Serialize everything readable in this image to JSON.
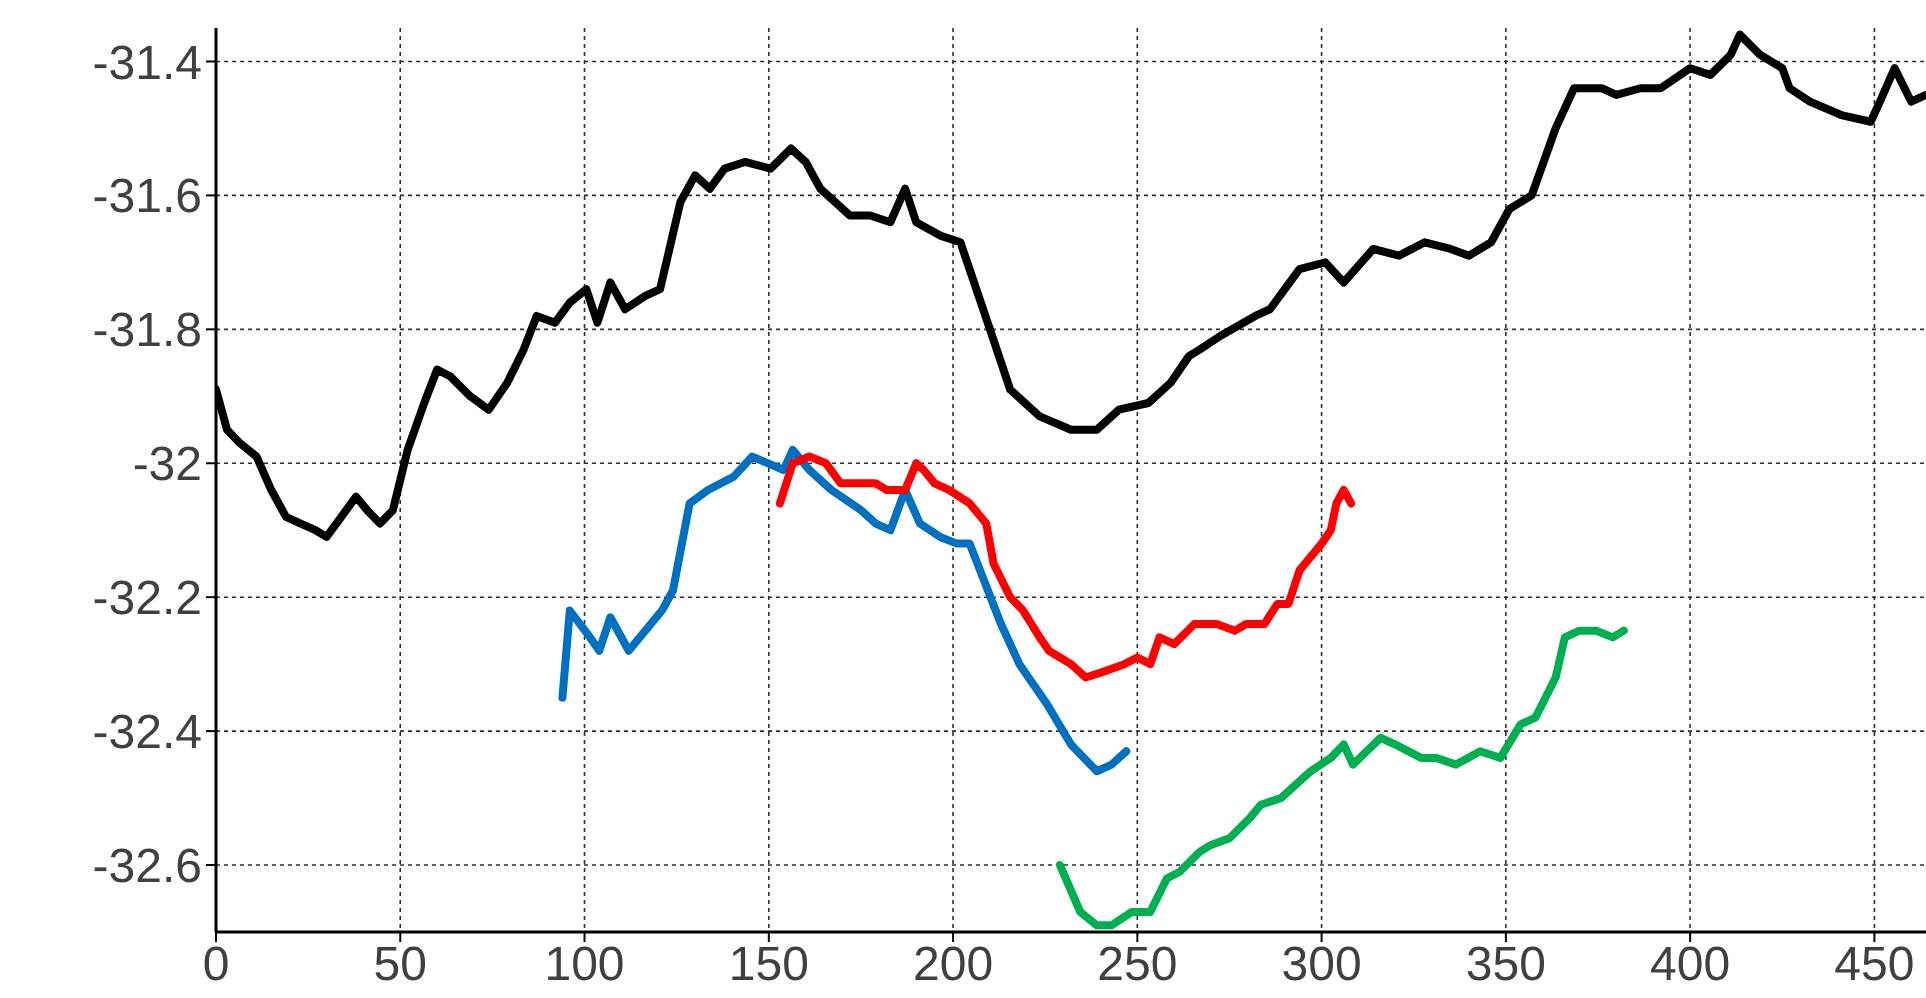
{
  "chart_data": {
    "type": "line",
    "xlim": [
      0,
      464
    ],
    "xticks": [
      0,
      50,
      100,
      150,
      200,
      250,
      300,
      350,
      400,
      450
    ],
    "ylim": [
      -32.7,
      -31.35
    ],
    "yticks": [
      -32.6,
      -32.4,
      -32.2,
      -32,
      -31.8,
      -31.6,
      -31.4
    ],
    "grid": true,
    "marker": "none",
    "line_style": "solid",
    "series": [
      {
        "color": "#000000",
        "x": [
          0,
          3,
          6.5,
          11,
          15,
          19,
          23,
          27,
          30,
          34,
          38,
          41,
          44.5,
          48,
          52,
          56.5,
          60,
          63.5,
          69,
          74,
          79,
          83.5,
          87,
          92,
          96,
          100.5,
          103.5,
          107,
          111,
          116.5,
          120.5,
          126,
          130,
          134,
          138,
          143.5,
          150.5,
          156,
          160,
          164,
          172,
          177.5,
          183,
          187,
          190,
          196.5,
          202,
          210,
          215.5,
          223.5,
          232,
          239,
          245,
          253,
          259,
          264,
          267,
          272.5,
          282,
          286,
          294,
          301,
          306,
          314,
          321,
          328,
          335,
          340,
          346,
          351,
          357,
          363.5,
          368.5,
          376,
          380,
          386.5,
          392,
          400,
          405.5,
          411,
          413.5,
          419,
          425,
          427,
          432.5,
          441,
          449,
          451.5,
          455.5,
          460,
          464
        ],
        "values": [
          -31.89,
          -31.95,
          -31.97,
          -31.99,
          -32.04,
          -32.08,
          -32.09,
          -32.1,
          -32.11,
          -32.08,
          -32.05,
          -32.07,
          -32.09,
          -32.07,
          -31.98,
          -31.91,
          -31.86,
          -31.87,
          -31.9,
          -31.92,
          -31.88,
          -31.83,
          -31.78,
          -31.79,
          -31.76,
          -31.74,
          -31.79,
          -31.73,
          -31.77,
          -31.75,
          -31.74,
          -31.61,
          -31.57,
          -31.59,
          -31.56,
          -31.55,
          -31.56,
          -31.53,
          -31.55,
          -31.59,
          -31.63,
          -31.63,
          -31.64,
          -31.59,
          -31.64,
          -31.66,
          -31.67,
          -31.8,
          -31.89,
          -31.93,
          -31.95,
          -31.95,
          -31.92,
          -31.91,
          -31.88,
          -31.84,
          -31.83,
          -31.81,
          -31.78,
          -31.77,
          -31.71,
          -31.7,
          -31.73,
          -31.68,
          -31.69,
          -31.67,
          -31.68,
          -31.69,
          -31.67,
          -31.62,
          -31.6,
          -31.5,
          -31.44,
          -31.44,
          -31.45,
          -31.44,
          -31.44,
          -31.41,
          -31.42,
          -31.39,
          -31.36,
          -31.39,
          -31.41,
          -31.44,
          -31.46,
          -31.48,
          -31.49,
          -31.46,
          -31.41,
          -31.46,
          -31.45
        ]
      },
      {
        "color": "#0070c0",
        "x": [
          94,
          96,
          101.5,
          104,
          107,
          112,
          121,
          124,
          128.5,
          133.5,
          140.5,
          145.5,
          154,
          156.5,
          161,
          167,
          175,
          179,
          183,
          187,
          191,
          196.5,
          201,
          204.5,
          213,
          218,
          225.5,
          232,
          239,
          243,
          247
        ],
        "values": [
          -32.35,
          -32.22,
          -32.26,
          -32.28,
          -32.23,
          -32.28,
          -32.22,
          -32.19,
          -32.06,
          -32.04,
          -32.02,
          -31.99,
          -32.01,
          -31.98,
          -32.01,
          -32.04,
          -32.07,
          -32.09,
          -32.1,
          -32.04,
          -32.09,
          -32.11,
          -32.12,
          -32.12,
          -32.24,
          -32.3,
          -32.36,
          -32.42,
          -32.46,
          -32.45,
          -32.43
        ]
      },
      {
        "color": "#ff0000",
        "x": [
          153,
          156.5,
          161,
          165.5,
          169.5,
          175,
          179,
          182,
          187,
          190,
          192,
          195,
          199,
          204.5,
          209,
          211,
          215.5,
          219,
          223.5,
          226,
          232,
          236,
          241.5,
          246.5,
          250,
          253.5,
          256,
          260,
          265.5,
          271.5,
          276.5,
          279.5,
          284.5,
          288,
          291,
          294,
          300,
          302.5,
          304,
          306,
          308
        ],
        "values": [
          -32.06,
          -32,
          -31.99,
          -32,
          -32.03,
          -32.03,
          -32.03,
          -32.04,
          -32.04,
          -32,
          -32.01,
          -32.03,
          -32.04,
          -32.06,
          -32.09,
          -32.15,
          -32.2,
          -32.22,
          -32.26,
          -32.28,
          -32.3,
          -32.32,
          -32.31,
          -32.3,
          -32.29,
          -32.3,
          -32.26,
          -32.27,
          -32.24,
          -32.24,
          -32.25,
          -32.24,
          -32.24,
          -32.21,
          -32.21,
          -32.16,
          -32.12,
          -32.1,
          -32.06,
          -32.04,
          -32.06
        ]
      },
      {
        "color": "#00b050",
        "x": [
          229,
          234.5,
          239,
          243,
          248.5,
          253.5,
          258,
          261.5,
          267,
          270,
          275,
          280.5,
          283.5,
          289,
          297,
          302.5,
          306,
          308.5,
          316,
          320,
          327,
          331,
          336.5,
          343,
          348.5,
          354,
          358,
          363.5,
          366,
          370,
          374.5,
          379,
          382
        ],
        "values": [
          -32.6,
          -32.67,
          -32.69,
          -32.69,
          -32.67,
          -32.67,
          -32.62,
          -32.61,
          -32.58,
          -32.57,
          -32.56,
          -32.53,
          -32.51,
          -32.5,
          -32.46,
          -32.44,
          -32.42,
          -32.45,
          -32.41,
          -32.42,
          -32.44,
          -32.44,
          -32.45,
          -32.43,
          -32.44,
          -32.39,
          -32.38,
          -32.32,
          -32.26,
          -32.25,
          -32.25,
          -32.26,
          -32.25
        ]
      }
    ]
  }
}
